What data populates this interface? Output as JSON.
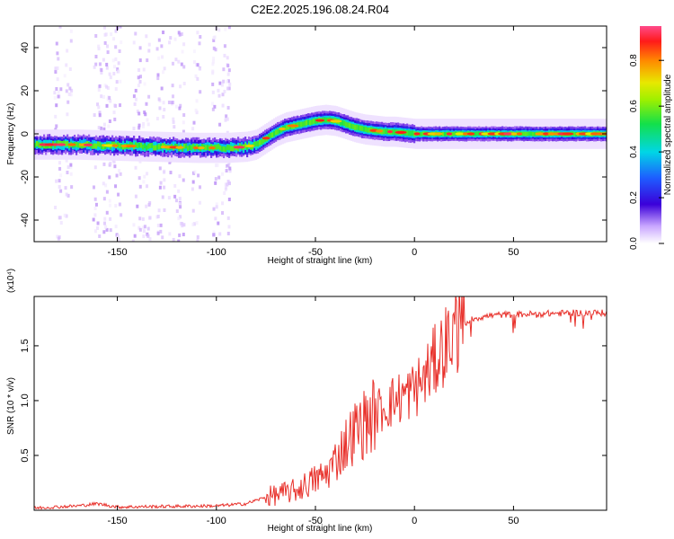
{
  "title": "C2E2.2025.196.08.24.R04",
  "colors": {
    "line": "#e8302a",
    "frame": "#000000"
  },
  "chart_data": [
    {
      "type": "heatmap",
      "xlabel": "Height of straight line (km)",
      "ylabel": "Frequency (Hz)",
      "xlim": [
        -192,
        97
      ],
      "ylim": [
        -50,
        50
      ],
      "xticks": [
        -150,
        -100,
        -50,
        0,
        50
      ],
      "yticks": [
        -40,
        -20,
        0,
        20,
        40
      ],
      "xtick_labels": [
        "-150",
        "-100",
        "-50",
        "0",
        "50"
      ],
      "ytick_labels": [
        "-40",
        "-20",
        "0",
        "20",
        "40"
      ],
      "colorbar": {
        "label": "Normalized spectral amplitude",
        "range": [
          0.0,
          0.95
        ],
        "ticks": [
          0.0,
          0.2,
          0.4,
          0.6,
          0.8
        ],
        "tick_labels": [
          "0.0",
          "0.2",
          "0.4",
          "0.6",
          "0.8"
        ],
        "colormap": [
          "#ffffff",
          "#e6d3ff",
          "#a063f0",
          "#3b00d9",
          "#1e5cff",
          "#00d6e6",
          "#13e04a",
          "#9df000",
          "#e8e800",
          "#ff8a00",
          "#ff1a1a",
          "#ff4a8a"
        ]
      },
      "ridge": {
        "x": [
          -192,
          -170,
          -150,
          -130,
          -110,
          -95,
          -85,
          -80,
          -75,
          -70,
          -65,
          -60,
          -55,
          -50,
          -45,
          -40,
          -35,
          -30,
          -25,
          -20,
          -15,
          -10,
          -5,
          0,
          5,
          10,
          20,
          40,
          60,
          97
        ],
        "frequency": [
          -5,
          -5,
          -5.5,
          -6,
          -6.5,
          -6.5,
          -6,
          -5,
          -2,
          1,
          3,
          4,
          5,
          6,
          6.5,
          6,
          4.5,
          3,
          2,
          1.5,
          1,
          1,
          0.5,
          0,
          0,
          0,
          0,
          0,
          0,
          0
        ]
      }
    },
    {
      "type": "line",
      "xlabel": "Height of straight line (km)",
      "ylabel": "SNR (10 * v/v)",
      "y_multiplier": "(x10⁴)",
      "xlim": [
        -192,
        97
      ],
      "ylim": [
        0,
        1.95
      ],
      "xticks": [
        -150,
        -100,
        -50,
        0,
        50
      ],
      "yticks": [
        0.5,
        1.0,
        1.5
      ],
      "xtick_labels": [
        "-150",
        "-100",
        "-50",
        "0",
        "50"
      ],
      "ytick_labels": [
        "0.5",
        "1.0",
        "1.5"
      ],
      "trend": {
        "x": [
          -192,
          -170,
          -160,
          -150,
          -100,
          -85,
          -75,
          -60,
          -50,
          -45,
          -40,
          -35,
          -30,
          -25,
          -20,
          -15,
          -10,
          -5,
          0,
          5,
          10,
          15,
          20,
          25,
          30,
          40,
          60,
          80,
          97
        ],
        "y": [
          0.02,
          0.04,
          0.06,
          0.03,
          0.04,
          0.06,
          0.12,
          0.18,
          0.28,
          0.32,
          0.45,
          0.6,
          0.72,
          0.8,
          0.88,
          0.95,
          1.0,
          1.05,
          1.1,
          1.2,
          1.35,
          1.5,
          1.62,
          1.7,
          1.75,
          1.78,
          1.79,
          1.8,
          1.8
        ]
      }
    }
  ]
}
